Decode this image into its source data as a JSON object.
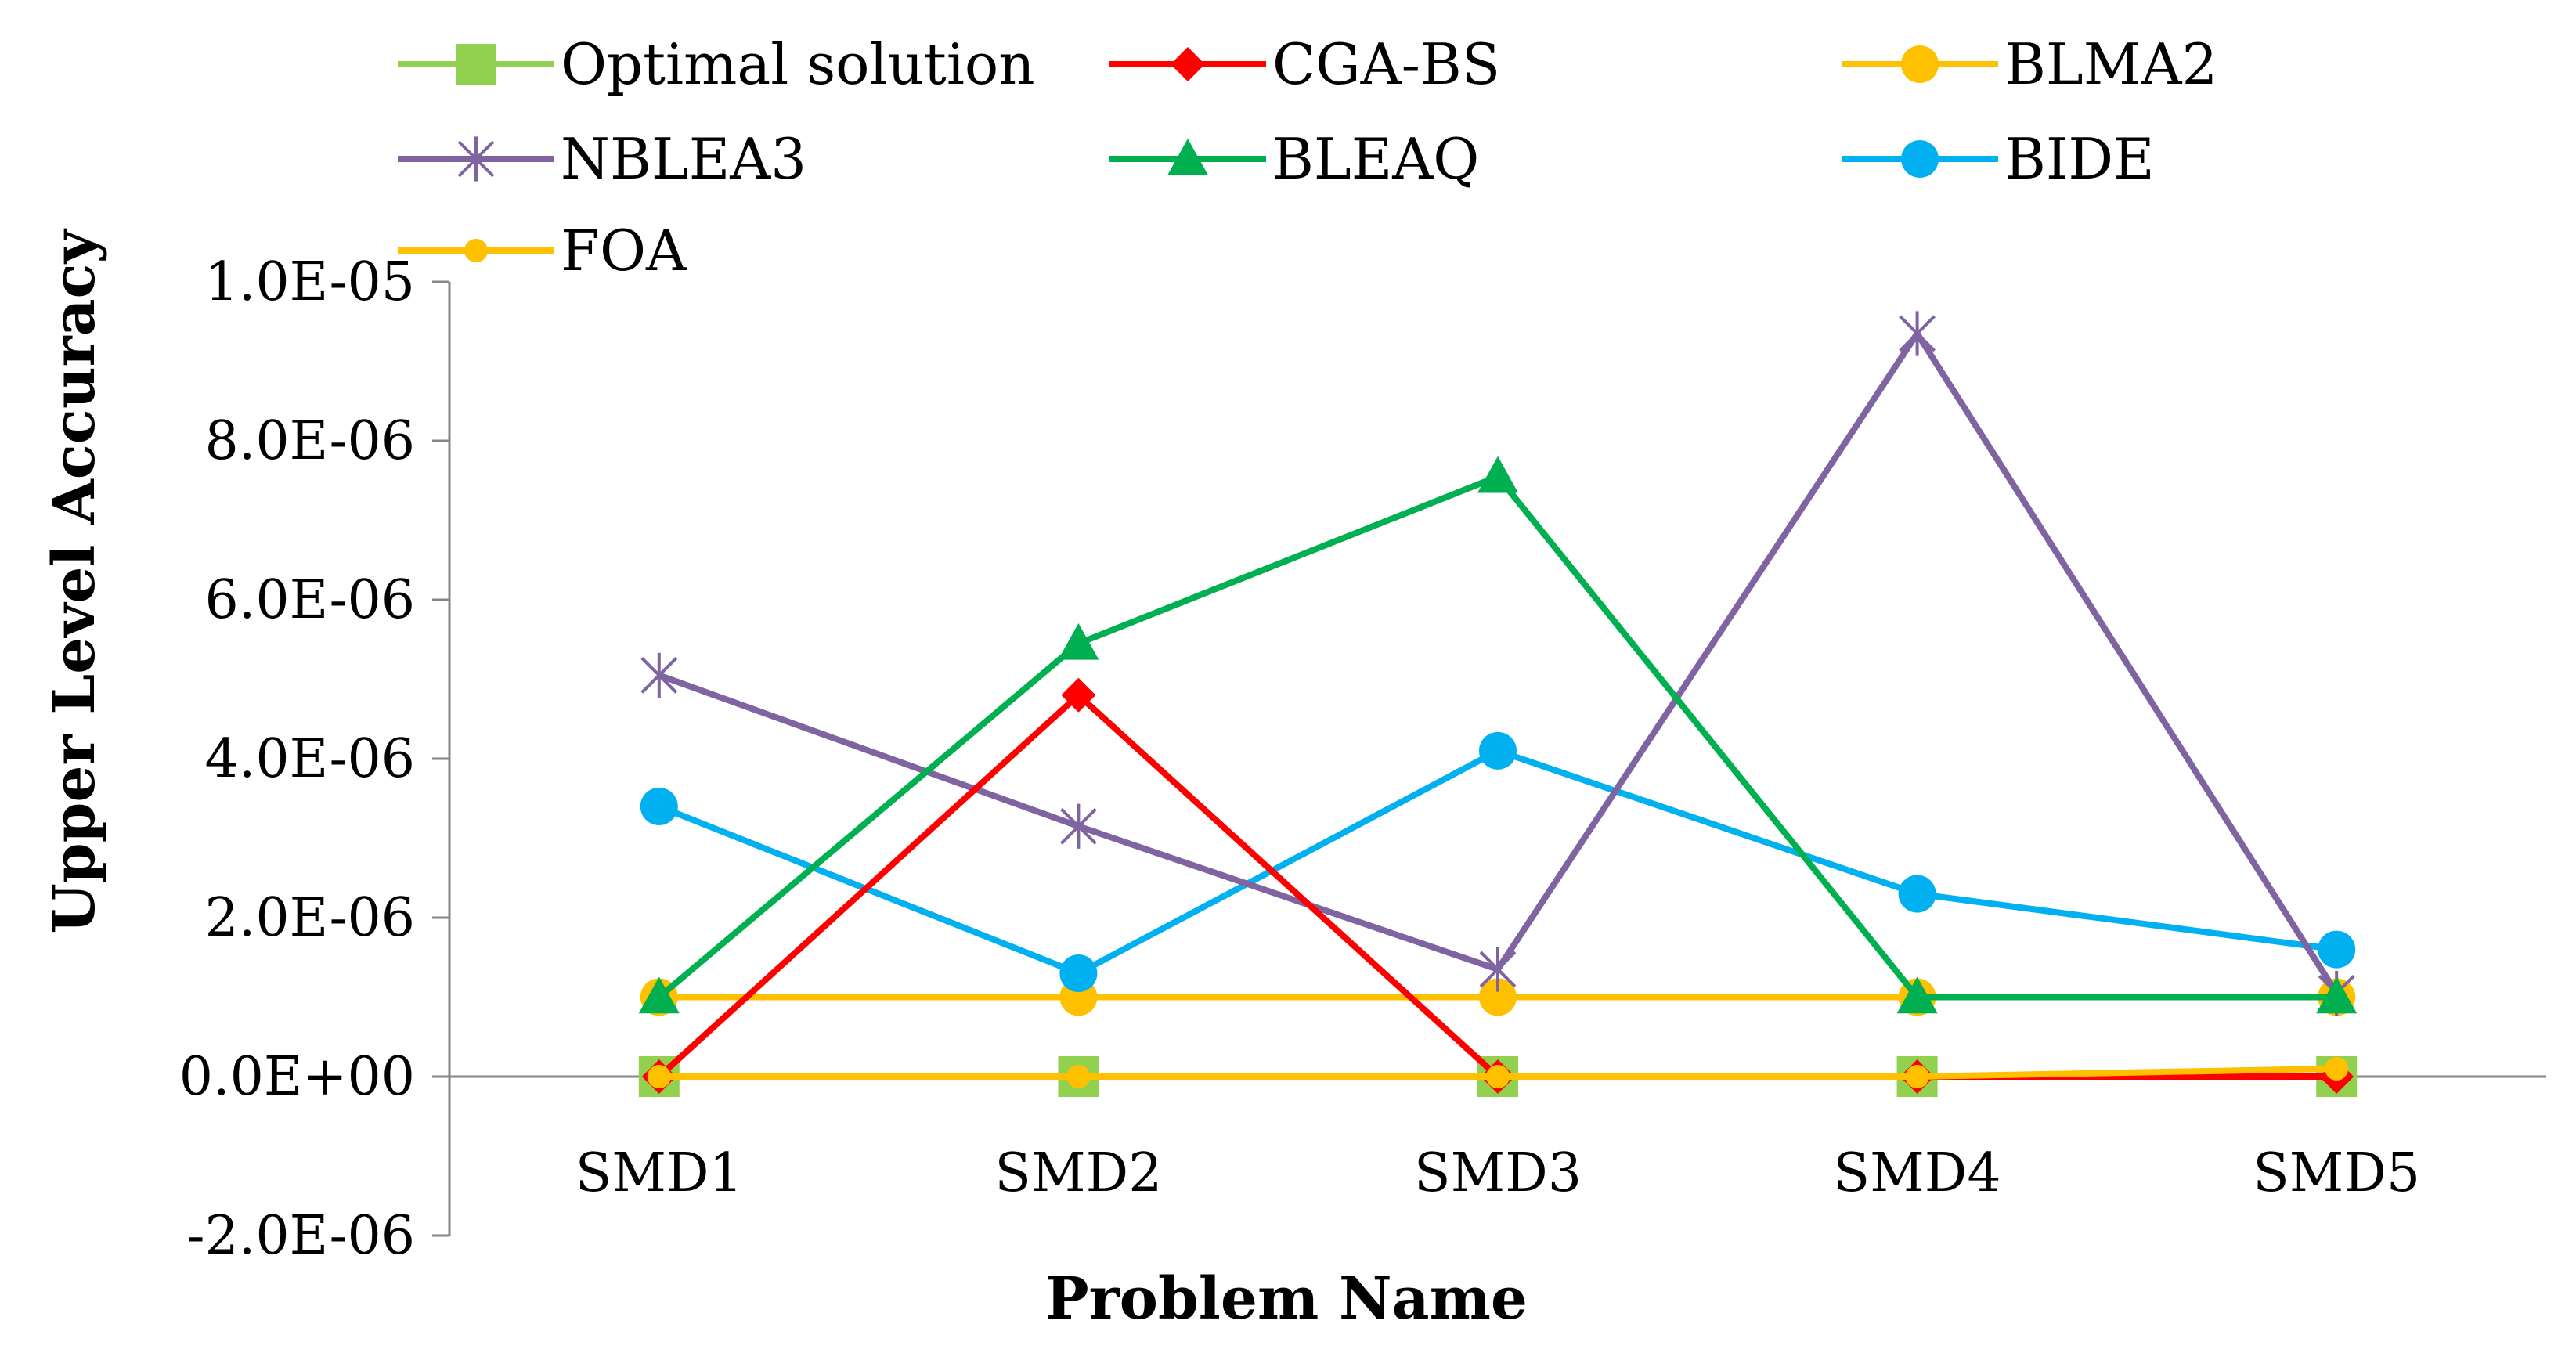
{
  "chart_data": {
    "type": "line",
    "title": "",
    "xlabel": "Problem Name",
    "ylabel": "Upper Level  Accuracy",
    "categories": [
      "SMD1",
      "SMD2",
      "SMD3",
      "SMD4",
      "SMD5"
    ],
    "ylim": [
      -2e-06,
      1e-05
    ],
    "yticks": [
      -2e-06,
      0,
      2e-06,
      4e-06,
      6e-06,
      8e-06,
      1e-05
    ],
    "ytick_labels": [
      "-2.0E-06",
      "0.0E+00",
      "2.0E-06",
      "4.0E-06",
      "6.0E-06",
      "8.0E-06",
      "1.0E-05"
    ],
    "grid": false,
    "legend_position": "top",
    "series": [
      {
        "name": "Optimal solution",
        "color": "#92D050",
        "marker": "square",
        "values": [
          0,
          0,
          0,
          0,
          0
        ]
      },
      {
        "name": "BLMA2",
        "color": "#FFC000",
        "marker": "circle",
        "values": [
          1e-06,
          1e-06,
          1e-06,
          1e-06,
          1e-06
        ]
      },
      {
        "name": "BIDE",
        "color": "#00B0F0",
        "marker": "circle",
        "values": [
          3.4e-06,
          1.3e-06,
          4.1e-06,
          2.3e-06,
          1.6e-06
        ]
      },
      {
        "name": "NBLEA3",
        "color": "#8064A2",
        "marker": "star",
        "values": [
          5.05e-06,
          3.15e-06,
          1.35e-06,
          9.35e-06,
          1.05e-06
        ]
      },
      {
        "name": "BLEAQ",
        "color": "#00B050",
        "marker": "triangle",
        "values": [
          1e-06,
          5.45e-06,
          7.55e-06,
          1e-06,
          1e-06
        ]
      },
      {
        "name": "CGA-BS",
        "color": "#FF0000",
        "marker": "diamond",
        "values": [
          0,
          4.8e-06,
          0,
          0,
          0
        ]
      },
      {
        "name": "FOA",
        "color": "#FFC000",
        "marker": "smallcircle",
        "values": [
          0,
          0,
          0,
          0,
          1e-07
        ]
      }
    ],
    "legend_order": [
      "Optimal solution",
      "CGA-BS",
      "BLMA2",
      "NBLEA3",
      "BLEAQ",
      "BIDE",
      "FOA"
    ]
  }
}
